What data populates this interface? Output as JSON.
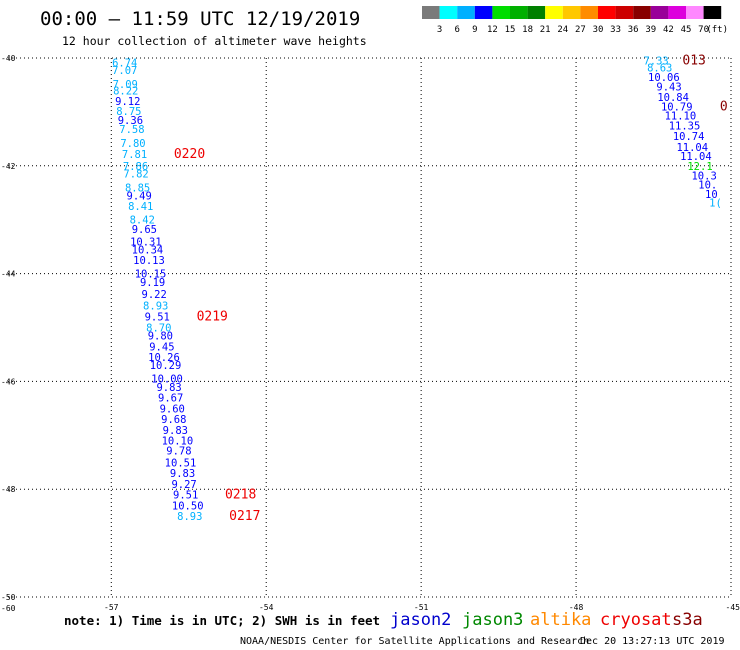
{
  "header": {
    "title": "00:00 – 11:59 UTC 12/19/2019",
    "subtitle": "12 hour collection of altimeter wave heights"
  },
  "colorbar": {
    "labels": [
      "3",
      "6",
      "9",
      "12",
      "15",
      "18",
      "21",
      "24",
      "27",
      "30",
      "33",
      "36",
      "39",
      "42",
      "45",
      "70"
    ],
    "unit": "(ft)",
    "colors": [
      "#7a7a7a",
      "#00ffff",
      "#00b0ff",
      "#0000ff",
      "#00dd00",
      "#00b000",
      "#008000",
      "#ffff00",
      "#ffc800",
      "#ff8c00",
      "#ff0000",
      "#cc0000",
      "#880000",
      "#990099",
      "#dd00dd",
      "#ff88ff",
      "#000000"
    ]
  },
  "footer": {
    "note": "note: 1) Time is in UTC; 2) SWH is in feet",
    "source": "NOAA/NESDIS Center for Satellite Applications and Research",
    "timestamp": "Dec 20 13:27:13 UTC 2019"
  },
  "chart_data": {
    "type": "scatter",
    "xlim": [
      -59,
      -45
    ],
    "ylim": [
      -50,
      -40
    ],
    "x_ticks": [
      -57,
      -54,
      -51,
      -48,
      -45
    ],
    "x_tick_labels": [
      "-57",
      "-54",
      "-51",
      "-48",
      "-45"
    ],
    "y_ticks": [
      -40,
      -42,
      -44,
      -46,
      -48,
      -50
    ],
    "y_tick_labels": [
      "-40",
      "-42",
      "-44",
      "-46",
      "-48",
      "-50"
    ],
    "corner_label": "-60",
    "grid": true,
    "grid_style": "dotted",
    "satellites": [
      {
        "name": "jason2",
        "color": "#0000cc"
      },
      {
        "name": "jason3",
        "color": "#008800"
      },
      {
        "name": "altika",
        "color": "#ff8800"
      },
      {
        "name": "cryosat",
        "color": "#ee0000"
      },
      {
        "name": "s3a",
        "color": "#880000"
      }
    ],
    "series": [
      {
        "points": [
          {
            "lon": -56.74,
            "lat": -40.08,
            "swh": "6.74"
          },
          {
            "lon": -56.74,
            "lat": -40.22,
            "swh": "7.07"
          },
          {
            "lon": -56.73,
            "lat": -40.48,
            "swh": "7.09"
          },
          {
            "lon": -56.72,
            "lat": -40.6,
            "swh": "8.22"
          },
          {
            "lon": -56.68,
            "lat": -40.8,
            "swh": "9.12"
          },
          {
            "lon": -56.66,
            "lat": -40.98,
            "swh": "8.75"
          },
          {
            "lon": -56.63,
            "lat": -41.15,
            "swh": "9.36"
          },
          {
            "lon": -56.6,
            "lat": -41.32,
            "swh": "7.58"
          },
          {
            "lon": -56.58,
            "lat": -41.58,
            "swh": "7.80"
          },
          {
            "lon": -56.55,
            "lat": -41.78,
            "swh": "7.81"
          },
          {
            "lon": -56.53,
            "lat": -42.0,
            "swh": "7.86"
          },
          {
            "lon": -56.52,
            "lat": -42.14,
            "swh": "7.82"
          },
          {
            "lon": -56.49,
            "lat": -42.4,
            "swh": "8.85"
          },
          {
            "lon": -56.46,
            "lat": -42.55,
            "swh": "9.49"
          },
          {
            "lon": -56.43,
            "lat": -42.75,
            "swh": "8.41"
          },
          {
            "lon": -56.4,
            "lat": -43.0,
            "swh": "8.42"
          },
          {
            "lon": -56.36,
            "lat": -43.17,
            "swh": "9.65"
          },
          {
            "lon": -56.33,
            "lat": -43.4,
            "swh": "10.31"
          },
          {
            "lon": -56.3,
            "lat": -43.55,
            "swh": "10.34"
          },
          {
            "lon": -56.27,
            "lat": -43.75,
            "swh": "10.13"
          },
          {
            "lon": -56.24,
            "lat": -44.0,
            "swh": "10.15"
          },
          {
            "lon": -56.2,
            "lat": -44.16,
            "swh": "9.19"
          },
          {
            "lon": -56.17,
            "lat": -44.38,
            "swh": "9.22"
          },
          {
            "lon": -56.14,
            "lat": -44.59,
            "swh": "8.93"
          },
          {
            "lon": -56.11,
            "lat": -44.8,
            "swh": "9.51"
          },
          {
            "lon": -56.08,
            "lat": -45.0,
            "swh": "8.70"
          },
          {
            "lon": -56.05,
            "lat": -45.15,
            "swh": "9.80"
          },
          {
            "lon": -56.02,
            "lat": -45.35,
            "swh": "9.45"
          },
          {
            "lon": -55.98,
            "lat": -45.55,
            "swh": "10.26"
          },
          {
            "lon": -55.95,
            "lat": -45.7,
            "swh": "10.29"
          },
          {
            "lon": -55.92,
            "lat": -45.95,
            "swh": "10.00"
          },
          {
            "lon": -55.88,
            "lat": -46.1,
            "swh": "9.83"
          },
          {
            "lon": -55.85,
            "lat": -46.3,
            "swh": "9.67"
          },
          {
            "lon": -55.82,
            "lat": -46.5,
            "swh": "9.60"
          },
          {
            "lon": -55.79,
            "lat": -46.7,
            "swh": "9.68"
          },
          {
            "lon": -55.76,
            "lat": -46.9,
            "swh": "9.83"
          },
          {
            "lon": -55.72,
            "lat": -47.1,
            "swh": "10.10"
          },
          {
            "lon": -55.69,
            "lat": -47.28,
            "swh": "9.78"
          },
          {
            "lon": -55.66,
            "lat": -47.5,
            "swh": "10.51"
          },
          {
            "lon": -55.62,
            "lat": -47.7,
            "swh": "9.83"
          },
          {
            "lon": -55.59,
            "lat": -47.9,
            "swh": "9.27"
          },
          {
            "lon": -55.56,
            "lat": -48.1,
            "swh": "9.51"
          },
          {
            "lon": -55.52,
            "lat": -48.3,
            "swh": "10.50"
          },
          {
            "lon": -55.48,
            "lat": -48.5,
            "swh": "8.93"
          }
        ],
        "time_labels": [
          {
            "text": "0220",
            "after_index": 9
          },
          {
            "text": "0219",
            "after_index": 24
          },
          {
            "text": "0218",
            "after_index": 41
          },
          {
            "text": "0217",
            "after_index": 43
          }
        ],
        "time_color": "#ee0000"
      },
      {
        "points": [
          {
            "lon": -46.45,
            "lat": -40.05,
            "swh": "7.33"
          },
          {
            "lon": -46.38,
            "lat": -40.18,
            "swh": "8.63"
          },
          {
            "lon": -46.3,
            "lat": -40.35,
            "swh": "10.06"
          },
          {
            "lon": -46.2,
            "lat": -40.53,
            "swh": "9.43"
          },
          {
            "lon": -46.12,
            "lat": -40.72,
            "swh": "10.84"
          },
          {
            "lon": -46.05,
            "lat": -40.9,
            "swh": "10.79"
          },
          {
            "lon": -45.98,
            "lat": -41.07,
            "swh": "11.10"
          },
          {
            "lon": -45.9,
            "lat": -41.25,
            "swh": "11.35"
          },
          {
            "lon": -45.82,
            "lat": -41.45,
            "swh": "10.74"
          },
          {
            "lon": -45.75,
            "lat": -41.65,
            "swh": "11.04"
          },
          {
            "lon": -45.68,
            "lat": -41.82,
            "swh": "11.04"
          },
          {
            "lon": -45.6,
            "lat": -42.0,
            "swh": "12.1"
          },
          {
            "lon": -45.52,
            "lat": -42.18,
            "swh": "10.3"
          },
          {
            "lon": -45.45,
            "lat": -42.35,
            "swh": "10."
          },
          {
            "lon": -45.38,
            "lat": -42.52,
            "swh": "10"
          },
          {
            "lon": -45.3,
            "lat": -42.68,
            "swh": "1("
          }
        ],
        "time_labels": [
          {
            "text": "013",
            "after_index": 0
          },
          {
            "text": "0",
            "after_index": 5
          }
        ],
        "time_color": "#880000"
      }
    ]
  }
}
